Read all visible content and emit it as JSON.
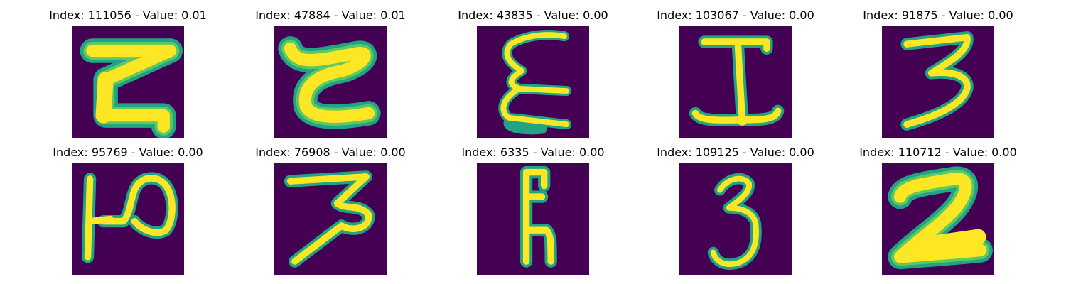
{
  "colors": {
    "background": "#440154",
    "stroke_outer": "#21a386",
    "stroke_mid": "#5ec962",
    "stroke_core": "#fde725"
  },
  "panels": [
    {
      "title": "Index: 111056 - Value: 0.01",
      "icon": "handwritten-z-glyph"
    },
    {
      "title": "Index: 47884 - Value: 0.01",
      "icon": "handwritten-c-glyph"
    },
    {
      "title": "Index: 43835 - Value: 0.00",
      "icon": "handwritten-epsilon-glyph"
    },
    {
      "title": "Index: 103067 - Value: 0.00",
      "icon": "handwritten-i-glyph"
    },
    {
      "title": "Index: 91875 - Value: 0.00",
      "icon": "handwritten-3-glyph"
    },
    {
      "title": "Index: 95769 - Value: 0.00",
      "icon": "handwritten-p-glyph"
    },
    {
      "title": "Index: 76908 - Value: 0.00",
      "icon": "handwritten-3-glyph"
    },
    {
      "title": "Index: 6335 - Value: 0.00",
      "icon": "handwritten-e-glyph"
    },
    {
      "title": "Index: 109125 - Value: 0.00",
      "icon": "handwritten-3-glyph"
    },
    {
      "title": "Index: 110712 - Value: 0.00",
      "icon": "handwritten-2-glyph"
    }
  ]
}
